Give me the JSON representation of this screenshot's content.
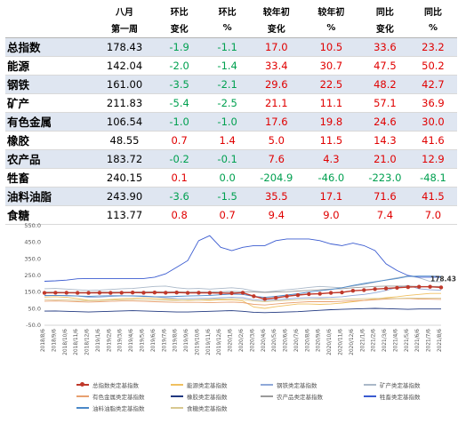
{
  "table": {
    "headers": [
      [
        "",
        "八月",
        "环比",
        "环比",
        "较年初",
        "较年初",
        "同比",
        "同比"
      ],
      [
        "",
        "第一周",
        "变化",
        "%",
        "变化",
        "%",
        "变化",
        "%"
      ]
    ],
    "rows": [
      {
        "name": "总指数",
        "value": "178.43",
        "cells": [
          "-1.9",
          "-1.1",
          "17.0",
          "10.5",
          "33.6",
          "23.2"
        ]
      },
      {
        "name": "能源",
        "value": "142.04",
        "cells": [
          "-2.0",
          "-1.4",
          "33.4",
          "30.7",
          "47.5",
          "50.2"
        ]
      },
      {
        "name": "钢铁",
        "value": "161.00",
        "cells": [
          "-3.5",
          "-2.1",
          "29.6",
          "22.5",
          "48.2",
          "42.7"
        ]
      },
      {
        "name": "矿产",
        "value": "211.83",
        "cells": [
          "-5.4",
          "-2.5",
          "21.1",
          "11.1",
          "57.1",
          "36.9"
        ]
      },
      {
        "name": "有色金属",
        "value": "106.54",
        "cells": [
          "-1.0",
          "-1.0",
          "17.6",
          "19.8",
          "24.6",
          "30.0"
        ]
      },
      {
        "name": "橡胶",
        "value": "48.55",
        "cells": [
          "0.7",
          "1.4",
          "5.0",
          "11.5",
          "14.3",
          "41.6"
        ]
      },
      {
        "name": "农产品",
        "value": "183.72",
        "cells": [
          "-0.2",
          "-0.1",
          "7.6",
          "4.3",
          "21.0",
          "12.9"
        ]
      },
      {
        "name": "牲畜",
        "value": "240.15",
        "cells": [
          "0.1",
          "0.0",
          "-204.9",
          "-46.0",
          "-223.0",
          "-48.1"
        ]
      },
      {
        "name": "油料油脂",
        "value": "243.90",
        "cells": [
          "-3.6",
          "-1.5",
          "35.5",
          "17.1",
          "71.6",
          "41.5"
        ]
      },
      {
        "name": "食糖",
        "value": "113.77",
        "cells": [
          "0.8",
          "0.7",
          "9.4",
          "9.0",
          "7.4",
          "7.0"
        ]
      }
    ]
  },
  "chart_data": {
    "type": "line",
    "ylim": [
      -50,
      550
    ],
    "yticks": [
      "-50.0",
      "50.0",
      "150.0",
      "250.0",
      "350.0",
      "450.0",
      "550.0"
    ],
    "x": [
      "2018/8/6",
      "2018/9/6",
      "2018/10/6",
      "2018/11/6",
      "2018/12/6",
      "2019/1/6",
      "2019/2/6",
      "2019/3/6",
      "2019/4/6",
      "2019/5/6",
      "2019/6/6",
      "2019/7/6",
      "2019/8/6",
      "2019/9/6",
      "2019/10/6",
      "2019/11/6",
      "2019/12/6",
      "2020/1/6",
      "2020/2/6",
      "2020/3/6",
      "2020/4/6",
      "2020/5/6",
      "2020/6/6",
      "2020/7/6",
      "2020/8/6",
      "2020/9/6",
      "2020/10/6",
      "2020/11/6",
      "2020/12/6",
      "2021/1/6",
      "2021/2/6",
      "2021/3/6",
      "2021/4/6",
      "2021/5/6",
      "2021/6/6",
      "2021/7/6",
      "2021/8/6"
    ],
    "end_label": "178.43",
    "series": [
      {
        "name": "总指数类定基指数",
        "color": "#c0392b",
        "marker": true,
        "values": [
          145,
          146,
          146,
          145,
          145,
          146,
          145,
          146,
          147,
          146,
          147,
          146,
          147,
          145,
          146,
          145,
          144,
          143,
          146,
          125,
          108,
          115,
          125,
          132,
          138,
          140,
          145,
          148,
          158,
          162,
          168,
          172,
          176,
          180,
          182,
          182,
          178
        ]
      },
      {
        "name": "能源类定基指数",
        "color": "#f0c060",
        "values": [
          120,
          122,
          118,
          110,
          100,
          102,
          106,
          110,
          112,
          115,
          112,
          108,
          104,
          100,
          102,
          100,
          104,
          102,
          96,
          60,
          52,
          62,
          70,
          78,
          78,
          76,
          78,
          84,
          92,
          100,
          108,
          116,
          122,
          130,
          136,
          142,
          142
        ]
      },
      {
        "name": "钢铁类定基指数",
        "color": "#8fa8d8",
        "values": [
          128,
          130,
          130,
          126,
          118,
          120,
          124,
          126,
          128,
          126,
          122,
          116,
          112,
          110,
          112,
          112,
          116,
          118,
          116,
          104,
          100,
          104,
          108,
          114,
          116,
          116,
          118,
          122,
          130,
          136,
          146,
          160,
          178,
          190,
          170,
          164,
          161
        ]
      },
      {
        "name": "矿产类定基指数",
        "color": "#aab8c8",
        "values": [
          170,
          172,
          168,
          164,
          160,
          162,
          166,
          170,
          172,
          178,
          184,
          186,
          176,
          170,
          172,
          168,
          172,
          176,
          170,
          156,
          150,
          156,
          164,
          170,
          178,
          184,
          180,
          176,
          186,
          196,
          210,
          224,
          236,
          248,
          236,
          214,
          212
        ]
      },
      {
        "name": "有色金属类定基指数",
        "color": "#e8a070",
        "values": [
          95,
          96,
          94,
          92,
          90,
          92,
          94,
          96,
          96,
          94,
          92,
          90,
          88,
          88,
          88,
          86,
          88,
          90,
          86,
          76,
          72,
          78,
          84,
          88,
          92,
          92,
          92,
          94,
          98,
          100,
          104,
          108,
          110,
          112,
          108,
          107,
          106
        ]
      },
      {
        "name": "橡胶类定基指数",
        "color": "#203880",
        "values": [
          35,
          36,
          34,
          32,
          30,
          32,
          34,
          36,
          38,
          36,
          34,
          32,
          30,
          30,
          32,
          34,
          36,
          38,
          34,
          28,
          26,
          28,
          30,
          32,
          36,
          40,
          44,
          46,
          48,
          50,
          52,
          50,
          48,
          46,
          48,
          48,
          48
        ]
      },
      {
        "name": "农产品类定基指数",
        "color": "#9a9a9a",
        "values": [
          150,
          150,
          148,
          148,
          148,
          150,
          150,
          150,
          150,
          152,
          152,
          152,
          152,
          150,
          150,
          150,
          152,
          154,
          152,
          150,
          148,
          150,
          152,
          156,
          160,
          164,
          168,
          170,
          176,
          180,
          184,
          186,
          186,
          186,
          184,
          184,
          184
        ]
      },
      {
        "name": "牲畜类定基指数",
        "color": "#3a5bd0",
        "values": [
          215,
          218,
          222,
          230,
          232,
          232,
          232,
          232,
          232,
          232,
          240,
          260,
          300,
          340,
          460,
          490,
          420,
          400,
          420,
          430,
          430,
          460,
          470,
          470,
          470,
          460,
          440,
          430,
          445,
          430,
          400,
          320,
          280,
          250,
          240,
          240,
          240
        ]
      },
      {
        "name": "油料油脂类定基指数",
        "color": "#4a88c8",
        "values": [
          130,
          130,
          128,
          126,
          124,
          126,
          128,
          128,
          126,
          124,
          122,
          122,
          124,
          126,
          128,
          130,
          134,
          138,
          136,
          124,
          118,
          124,
          132,
          140,
          150,
          158,
          166,
          176,
          190,
          202,
          212,
          222,
          232,
          244,
          246,
          246,
          244
        ]
      },
      {
        "name": "食糖类定基指数",
        "color": "#d8c890",
        "values": [
          105,
          104,
          102,
          100,
          98,
          100,
          102,
          104,
          106,
          104,
          102,
          100,
          100,
          102,
          104,
          106,
          108,
          110,
          106,
          96,
          92,
          96,
          100,
          104,
          106,
          108,
          108,
          106,
          108,
          110,
          112,
          112,
          112,
          114,
          114,
          114,
          114
        ]
      }
    ]
  }
}
